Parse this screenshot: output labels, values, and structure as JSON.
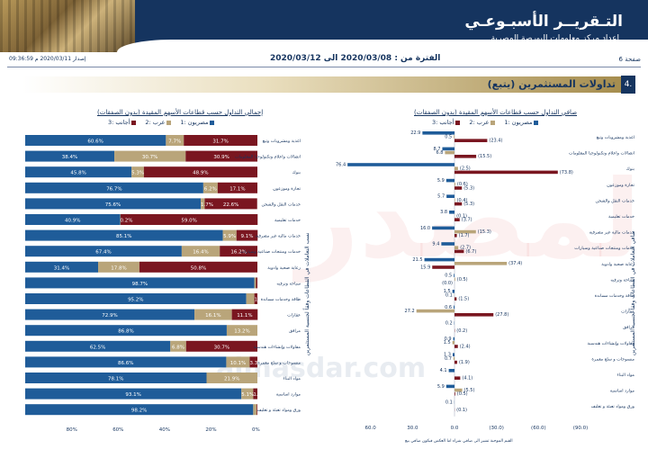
{
  "header": {
    "title": "التـقريــر الأسبـوعـي",
    "subtitle": "إعداد مركز معلومات البورصة المصرية"
  },
  "meta": {
    "page": "صفحة 6",
    "period": "الفترة من : 2020/03/08 الى 2020/03/12",
    "issue": "إصدار 2020/03/11 م 09:36:59"
  },
  "section": {
    "number": "4.",
    "title": "تداولات المستثمرين   (يتبع)"
  },
  "colors": {
    "egyptian": "#1f5c99",
    "arab": "#b9a57a",
    "foreign": "#7a1620",
    "navy": "#15345f"
  },
  "legend": [
    "مصريون :1",
    "عرب :2",
    "أجانب :3"
  ],
  "sectors": [
    "اغذية ومشروبات وتبغ",
    "اتصالات واعلام وتكنولوجيا المعلومات",
    "بنوك",
    "تجارة وموزعون",
    "خدمات النقل والشحن",
    "خدمات تعليمية",
    "خدمات مالية غير مصرفية",
    "خدمات ومنتجات صناعية وسيارات",
    "رعاية صحية وادوية",
    "سياحة وترفيه",
    "طاقة وخدمات مساندة",
    "عقارات",
    "مرافق",
    "مقاولات وإنشاءات هندسية",
    "منسوجات و سلع معمرة",
    "مواد البناء",
    "موارد اساسية",
    "ورق ومواد تعبئة و تغليف"
  ],
  "left_chart": {
    "title": "إجمالي التداول حسب قطاعات الأسهم المقيدة (بدون الصفقات)",
    "side_label": "نسب التعاملات في القطاعات وفقاً لجنسية المستثمرين",
    "axis_ticks": [
      "80%",
      "60%",
      "40%",
      "20%",
      "0%"
    ],
    "rows": [
      {
        "eg": 60.6,
        "ar": 7.7,
        "fo": 31.7,
        "eg_label": "60.6%",
        "ar_label": "7.7%",
        "fo_label": "31.7%"
      },
      {
        "eg": 38.4,
        "ar": 30.7,
        "fo": 30.9,
        "eg_label": "38.4%",
        "ar_label": "30.7%",
        "fo_label": "30.9%"
      },
      {
        "eg": 45.8,
        "ar": 5.3,
        "fo": 48.9,
        "eg_label": "45.8%",
        "ar_label": "5.3%",
        "fo_label": "48.9%"
      },
      {
        "eg": 76.7,
        "ar": 6.2,
        "fo": 17.1,
        "eg_label": "76.7%",
        "ar_label": "6.2%",
        "fo_label": "17.1%"
      },
      {
        "eg": 75.6,
        "ar": 1.7,
        "fo": 22.6,
        "eg_label": "75.6%",
        "ar_label": "1.7%",
        "fo_label": "22.6%"
      },
      {
        "eg": 40.9,
        "ar": 0.2,
        "fo": 59.0,
        "eg_label": "40.9%",
        "ar_label": "0.2%",
        "fo_label": "59.0%"
      },
      {
        "eg": 85.1,
        "ar": 5.9,
        "fo": 9.1,
        "eg_label": "85.1%",
        "ar_label": "5.9%",
        "fo_label": "9.1%"
      },
      {
        "eg": 67.4,
        "ar": 16.4,
        "fo": 16.2,
        "eg_label": "67.4%",
        "ar_label": "16.4%",
        "fo_label": "16.2%"
      },
      {
        "eg": 31.4,
        "ar": 17.8,
        "fo": 50.8,
        "eg_label": "31.4%",
        "ar_label": "17.8%",
        "fo_label": "50.8%"
      },
      {
        "eg": 98.7,
        "ar": 0.7,
        "fo": 0.6,
        "eg_label": "98.7%",
        "ar_label": "",
        "fo_label": ""
      },
      {
        "eg": 95.2,
        "ar": 3.5,
        "fo": 1.3,
        "eg_label": "95.2%",
        "ar_label": "",
        "fo_label": "1.3%"
      },
      {
        "eg": 72.9,
        "ar": 16.1,
        "fo": 11.1,
        "eg_label": "72.9%",
        "ar_label": "16.1%",
        "fo_label": "11.1%"
      },
      {
        "eg": 86.8,
        "ar": 13.2,
        "fo": 0.0,
        "eg_label": "86.8%",
        "ar_label": "13.2%",
        "fo_label": ""
      },
      {
        "eg": 62.5,
        "ar": 6.8,
        "fo": 30.7,
        "eg_label": "62.5%",
        "ar_label": "6.8%",
        "fo_label": "30.7%"
      },
      {
        "eg": 86.6,
        "ar": 10.1,
        "fo": 3.3,
        "eg_label": "86.6%",
        "ar_label": "10.1%",
        "fo_label": "3.3%"
      },
      {
        "eg": 78.1,
        "ar": 21.9,
        "fo": 0.0,
        "eg_label": "78.1%",
        "ar_label": "21.9%",
        "fo_label": ""
      },
      {
        "eg": 93.1,
        "ar": 5.1,
        "fo": 1.8,
        "eg_label": "93.1%",
        "ar_label": "5.1%",
        "fo_label": "1.8%"
      },
      {
        "eg": 98.2,
        "ar": 1.5,
        "fo": 0.3,
        "eg_label": "98.2%",
        "ar_label": "",
        "fo_label": ""
      }
    ]
  },
  "right_chart": {
    "title": "صافي التداول حسب قطاعات الأسهم المقيدة (بدون الصفقات)",
    "side_label": "صافي التعاملات في القطاعات وفقاً لجنسية المستثمرين",
    "axis_ticks": [
      "60.0",
      "30.0",
      "0.0",
      "(30.0)",
      "(60.0)",
      "(90.0)"
    ],
    "footnote": "القيم الموجبة تشير الى صافي شراء اما العكس فيكون صافي بيع",
    "rows": [
      {
        "eg": 22.9,
        "ar": 0.5,
        "fo": -23.4,
        "eg_label": "22.9",
        "ar_label": "0.5",
        "fo_label": "(23.4)"
      },
      {
        "eg": 8.7,
        "ar": 6.8,
        "fo": -15.5,
        "eg_label": "8.7",
        "ar_label": "6.8",
        "fo_label": "(15.5)"
      },
      {
        "eg": 76.4,
        "ar": -2.5,
        "fo": -73.8,
        "eg_label": "76.4",
        "ar_label": "(2.5)",
        "fo_label": "(73.8)"
      },
      {
        "eg": 5.9,
        "ar": -0.6,
        "fo": -5.3,
        "eg_label": "5.9",
        "ar_label": "(0.6)",
        "fo_label": "(5.3)"
      },
      {
        "eg": 5.7,
        "ar": -0.4,
        "fo": -5.3,
        "eg_label": "5.7",
        "ar_label": "(0.4)",
        "fo_label": "(5.3)"
      },
      {
        "eg": 3.8,
        "ar": -0.1,
        "fo": -3.7,
        "eg_label": "3.8",
        "ar_label": "(0.1)",
        "fo_label": "(3.7)"
      },
      {
        "eg": 16.0,
        "ar": -15.3,
        "fo": -1.7,
        "eg_label": "16.0",
        "ar_label": "(15.3)",
        "fo_label": "(1.7)"
      },
      {
        "eg": 9.4,
        "ar": -2.7,
        "fo": -6.7,
        "eg_label": "9.4",
        "ar_label": "(2.7)",
        "fo_label": "(6.7)"
      },
      {
        "eg": 21.5,
        "ar": -37.4,
        "fo": 15.9,
        "eg_label": "21.5",
        "ar_label": "(37.4)",
        "fo_label": "15.9"
      },
      {
        "eg": 0.5,
        "ar": -0.5,
        "fo": 0.0,
        "eg_label": "0.5",
        "ar_label": "(0.5)",
        "fo_label": "(0.0)"
      },
      {
        "eg": 1.5,
        "ar": 0.1,
        "fo": -1.5,
        "eg_label": "1.5",
        "ar_label": "0.1",
        "fo_label": "(1.5)"
      },
      {
        "eg": 0.6,
        "ar": 27.2,
        "fo": -27.8,
        "eg_label": "0.6",
        "ar_label": "27.2",
        "fo_label": "(27.8)"
      },
      {
        "eg": 0.2,
        "ar": 0.0,
        "fo": -0.2,
        "eg_label": "0.2",
        "ar_label": "",
        "fo_label": "(0.2)"
      },
      {
        "eg": 0.9,
        "ar": 1.5,
        "fo": -2.4,
        "eg_label": "0.9",
        "ar_label": "1.5",
        "fo_label": "(2.4)"
      },
      {
        "eg": 1.3,
        "ar": 0.7,
        "fo": -1.9,
        "eg_label": "1.3",
        "ar_label": "0.7",
        "fo_label": "(1.9)"
      },
      {
        "eg": 4.1,
        "ar": 0.0,
        "fo": -4.1,
        "eg_label": "4.1",
        "ar_label": "",
        "fo_label": "(4.1)"
      },
      {
        "eg": 5.9,
        "ar": -5.5,
        "fo": -0.5,
        "eg_label": "5.9",
        "ar_label": "(5.5)",
        "fo_label": "(0.5)"
      },
      {
        "eg": 0.1,
        "ar": 0.0,
        "fo": -0.1,
        "eg_label": "0.1",
        "ar_label": "",
        "fo_label": "(0.1)"
      }
    ]
  },
  "watermark": {
    "logo_text": "المصدر",
    "url": "almasdar.com"
  }
}
